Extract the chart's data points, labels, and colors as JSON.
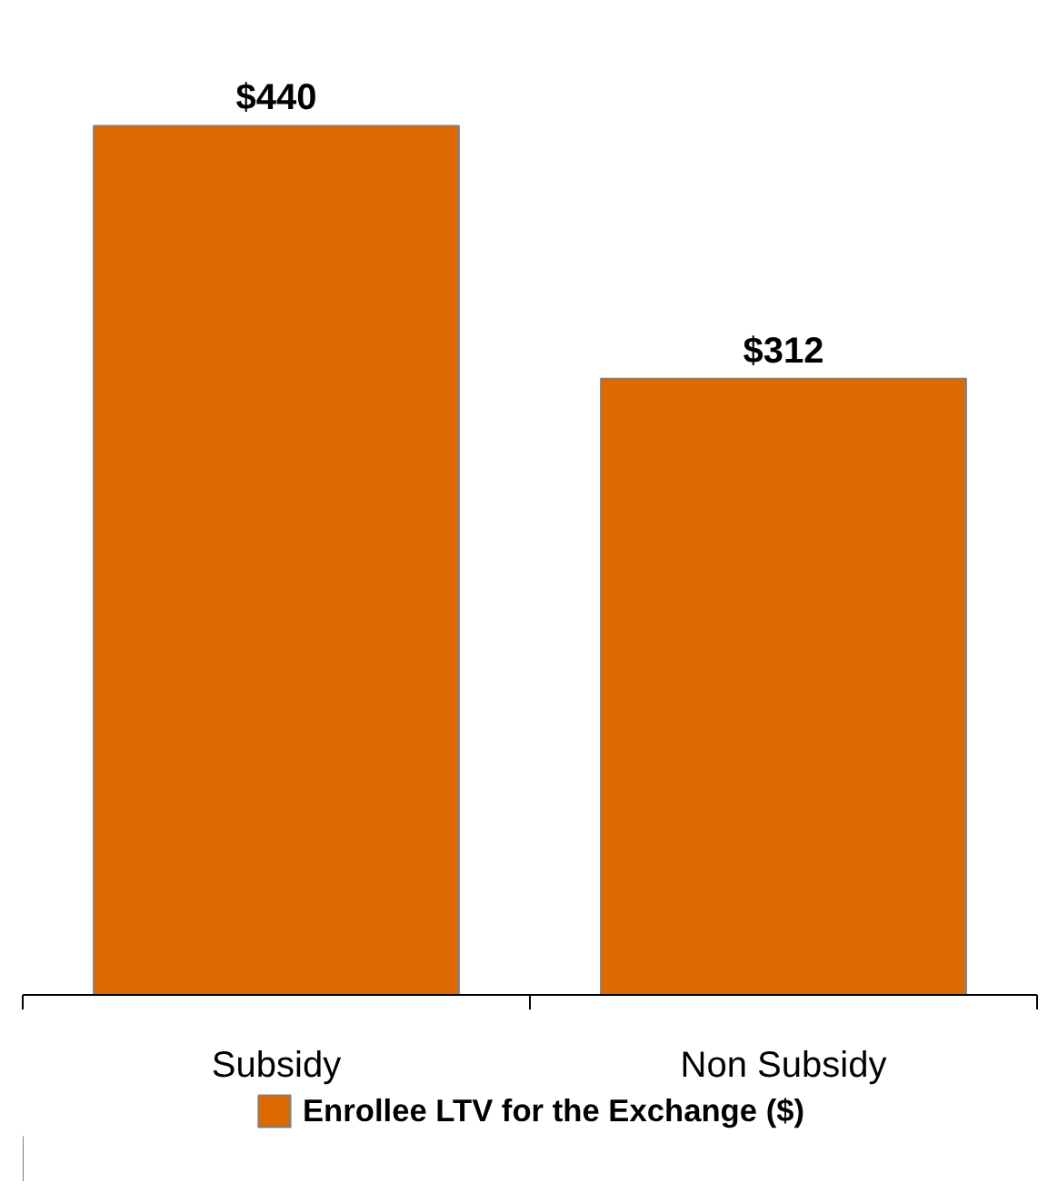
{
  "chart_data": {
    "type": "bar",
    "categories": [
      "Subsidy",
      "Non Subsidy"
    ],
    "series": [
      {
        "name": "Enrollee LTV for the Exchange ($)",
        "color": "#dd6a00",
        "values": [
          440,
          312
        ],
        "value_labels": [
          "$440",
          "$312"
        ]
      }
    ],
    "legend": "bottom",
    "grid": false
  }
}
